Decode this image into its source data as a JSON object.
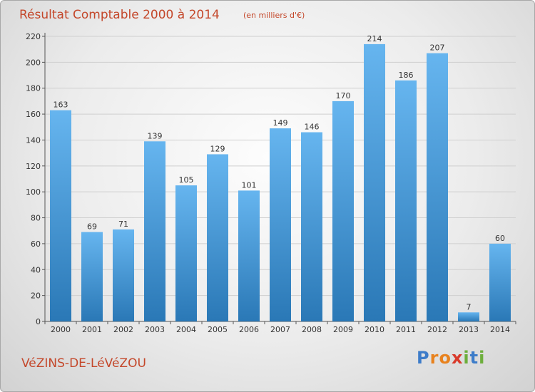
{
  "title": "Résultat Comptable 2000 à 2014",
  "subtitle": "(en milliers d'€)",
  "commune": "VéZINS-DE-LéVéZOU",
  "logo": {
    "letters": [
      "P",
      "r",
      "o",
      "x",
      "i",
      "t",
      "i"
    ],
    "colors": [
      "#3d7cc9",
      "#e8821e",
      "#e8821e",
      "#d93a2b",
      "#6dae3c",
      "#3d7cc9",
      "#6dae3c"
    ]
  },
  "colors": {
    "bar_light": "#66b5ef",
    "bar_dark": "#2a78b6",
    "title": "#c4472a",
    "grid": "#cfcfcf"
  },
  "chart_data": {
    "type": "bar",
    "categories": [
      "2000",
      "2001",
      "2002",
      "2003",
      "2004",
      "2005",
      "2006",
      "2007",
      "2008",
      "2009",
      "2010",
      "2011",
      "2012",
      "2013",
      "2014"
    ],
    "values": [
      163,
      69,
      71,
      139,
      105,
      129,
      101,
      149,
      146,
      170,
      214,
      186,
      207,
      7,
      60
    ],
    "data_labels": [
      "163",
      "69",
      "71",
      "139",
      "105",
      "129",
      "101",
      "149",
      "146",
      "170",
      "214",
      "186",
      "207",
      "7",
      "60"
    ],
    "yticks": [
      "0",
      "20",
      "40",
      "60",
      "80",
      "100",
      "120",
      "140",
      "160",
      "180",
      "200",
      "220"
    ],
    "ylim": [
      0,
      220
    ],
    "grid": true,
    "legend": "none"
  }
}
